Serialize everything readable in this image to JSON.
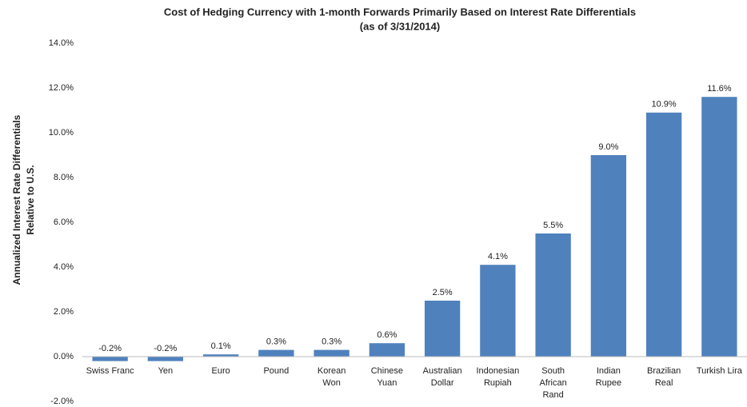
{
  "chart_data": {
    "type": "bar",
    "title": "Cost of Hedging Currency with 1-month Forwards Primarily Based on Interest Rate Differentials",
    "subtitle": "(as of 3/31/2014)",
    "y_label": [
      "Annualized Interest Rate Differentials",
      "Relative to U.S."
    ],
    "categories": [
      "Swiss Franc",
      "Yen",
      "Euro",
      "Pound",
      "Korean\nWon",
      "Chinese\nYuan",
      "Australian\nDollar",
      "Indonesian\nRupiah",
      "South\nAfrican\nRand",
      "Indian\nRupee",
      "Brazilian\nReal",
      "Turkish Lira"
    ],
    "values": [
      -0.2,
      -0.2,
      0.1,
      0.3,
      0.3,
      0.6,
      2.5,
      4.1,
      5.5,
      9.0,
      10.9,
      11.6
    ],
    "value_labels": [
      "-0.2%",
      "-0.2%",
      "0.1%",
      "0.3%",
      "0.3%",
      "0.6%",
      "2.5%",
      "4.1%",
      "5.5%",
      "9.0%",
      "10.9%",
      "11.6%"
    ],
    "color": "#4f81bd",
    "ylim": [
      -2,
      14
    ],
    "yticks": [
      {
        "value": -2,
        "label": "-2.0%"
      },
      {
        "value": 0,
        "label": "0.0%"
      },
      {
        "value": 2,
        "label": "2.0%"
      },
      {
        "value": 4,
        "label": "4.0%"
      },
      {
        "value": 6,
        "label": "6.0%"
      },
      {
        "value": 8,
        "label": "8.0%"
      },
      {
        "value": 10,
        "label": "10.0%"
      },
      {
        "value": 12,
        "label": "12.0%"
      },
      {
        "value": 14,
        "label": "14.0%"
      }
    ],
    "grid": false
  }
}
